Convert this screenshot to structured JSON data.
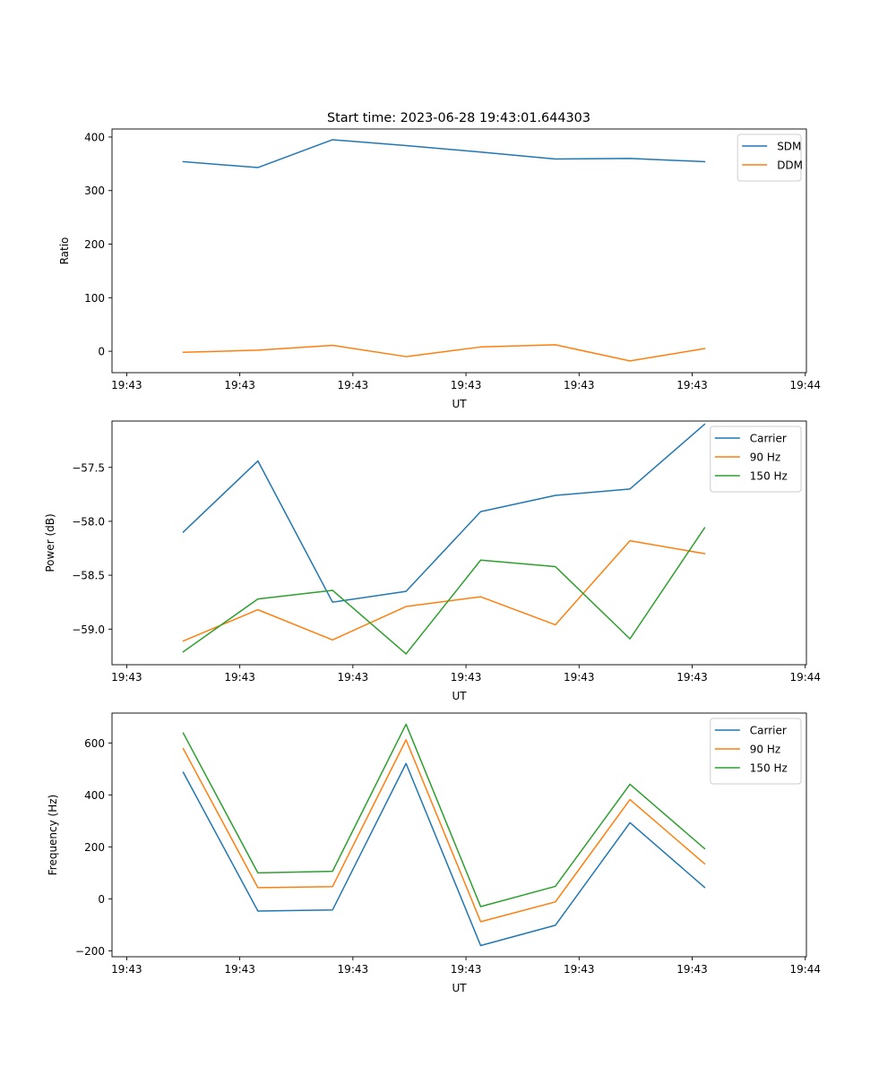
{
  "figure_title": "Start time: 2023-06-28 19:43:01.644303",
  "chart_data": [
    {
      "type": "line",
      "title": "Start time: 2023-06-28 19:43:01.644303",
      "xlabel": "UT",
      "ylabel": "Ratio",
      "x": [
        "19:43:01.64",
        "19:43:02.30",
        "19:43:02.96",
        "19:43:03.61",
        "19:43:04.27",
        "19:43:04.93",
        "19:43:05.59",
        "19:43:06.25"
      ],
      "xticks": [
        {
          "value": 0.94,
          "label": "19:43"
        },
        {
          "value": 1.94,
          "label": "19:43"
        },
        {
          "value": 2.94,
          "label": "19:43"
        },
        {
          "value": 3.94,
          "label": "19:43"
        },
        {
          "value": 4.94,
          "label": "19:43"
        },
        {
          "value": 5.94,
          "label": "19:43"
        },
        {
          "value": 6.94,
          "label": "19:44"
        }
      ],
      "xnum": [
        1.44,
        2.1,
        2.76,
        3.41,
        4.07,
        4.73,
        5.39,
        6.05
      ],
      "xlim": [
        0.81,
        6.95
      ],
      "ylim": [
        -40,
        415
      ],
      "yticks": [
        0,
        100,
        200,
        300,
        400
      ],
      "ytick_labels": [
        "0",
        "100",
        "200",
        "300",
        "400"
      ],
      "grid": false,
      "legend_position": "upper right",
      "series": [
        {
          "name": "SDM",
          "color": "#1f77b4",
          "values": [
            354,
            343,
            395,
            384,
            372,
            359,
            360,
            354
          ]
        },
        {
          "name": "DDM",
          "color": "#ff7f0e",
          "values": [
            -2,
            2,
            11,
            -10,
            8,
            12,
            -18,
            5
          ]
        }
      ]
    },
    {
      "type": "line",
      "title": "",
      "xlabel": "UT",
      "ylabel": "Power (dB)",
      "x": [
        "19:43:01.64",
        "19:43:02.30",
        "19:43:02.96",
        "19:43:03.61",
        "19:43:04.27",
        "19:43:04.93",
        "19:43:05.59",
        "19:43:06.25"
      ],
      "xticks": [
        {
          "value": 0.94,
          "label": "19:43"
        },
        {
          "value": 1.94,
          "label": "19:43"
        },
        {
          "value": 2.94,
          "label": "19:43"
        },
        {
          "value": 3.94,
          "label": "19:43"
        },
        {
          "value": 4.94,
          "label": "19:43"
        },
        {
          "value": 5.94,
          "label": "19:43"
        },
        {
          "value": 6.94,
          "label": "19:44"
        }
      ],
      "xnum": [
        1.44,
        2.1,
        2.76,
        3.41,
        4.07,
        4.73,
        5.39,
        6.05
      ],
      "xlim": [
        0.81,
        6.95
      ],
      "ylim": [
        -59.33,
        -57.07
      ],
      "yticks": [
        -59.0,
        -58.5,
        -58.0,
        -57.5
      ],
      "ytick_labels": [
        "−59.0",
        "−58.5",
        "−58.0",
        "−57.5"
      ],
      "grid": false,
      "legend_position": "upper right",
      "series": [
        {
          "name": "Carrier",
          "color": "#1f77b4",
          "values": [
            -58.1,
            -57.44,
            -58.75,
            -58.65,
            -57.91,
            -57.76,
            -57.7,
            -57.1
          ]
        },
        {
          "name": "90 Hz",
          "color": "#ff7f0e",
          "values": [
            -59.11,
            -58.82,
            -59.1,
            -58.79,
            -58.7,
            -58.96,
            -58.18,
            -58.3
          ]
        },
        {
          "name": "150 Hz",
          "color": "#2ca02c",
          "values": [
            -59.21,
            -58.72,
            -58.64,
            -59.23,
            -58.36,
            -58.42,
            -59.09,
            -58.06
          ]
        }
      ]
    },
    {
      "type": "line",
      "title": "",
      "xlabel": "UT",
      "ylabel": "Frequency (Hz)",
      "x": [
        "19:43:01.64",
        "19:43:02.30",
        "19:43:02.96",
        "19:43:03.61",
        "19:43:04.27",
        "19:43:04.93",
        "19:43:05.59",
        "19:43:06.25"
      ],
      "xticks": [
        {
          "value": 0.94,
          "label": "19:43"
        },
        {
          "value": 1.94,
          "label": "19:43"
        },
        {
          "value": 2.94,
          "label": "19:43"
        },
        {
          "value": 3.94,
          "label": "19:43"
        },
        {
          "value": 4.94,
          "label": "19:43"
        },
        {
          "value": 5.94,
          "label": "19:43"
        },
        {
          "value": 6.94,
          "label": "19:44"
        }
      ],
      "xnum": [
        1.44,
        2.1,
        2.76,
        3.41,
        4.07,
        4.73,
        5.39,
        6.05
      ],
      "xlim": [
        0.81,
        6.95
      ],
      "ylim": [
        -223,
        715
      ],
      "yticks": [
        -200,
        0,
        200,
        400,
        600
      ],
      "ytick_labels": [
        "−200",
        "0",
        "200",
        "400",
        "600"
      ],
      "grid": false,
      "legend_position": "upper right",
      "series": [
        {
          "name": "Carrier",
          "color": "#1f77b4",
          "values": [
            487,
            -47,
            -43,
            521,
            -180,
            -102,
            293,
            44
          ]
        },
        {
          "name": "90 Hz",
          "color": "#ff7f0e",
          "values": [
            578,
            43,
            47,
            612,
            -88,
            -12,
            382,
            135
          ]
        },
        {
          "name": "150 Hz",
          "color": "#2ca02c",
          "values": [
            638,
            100,
            106,
            672,
            -30,
            48,
            441,
            193
          ]
        }
      ]
    }
  ]
}
